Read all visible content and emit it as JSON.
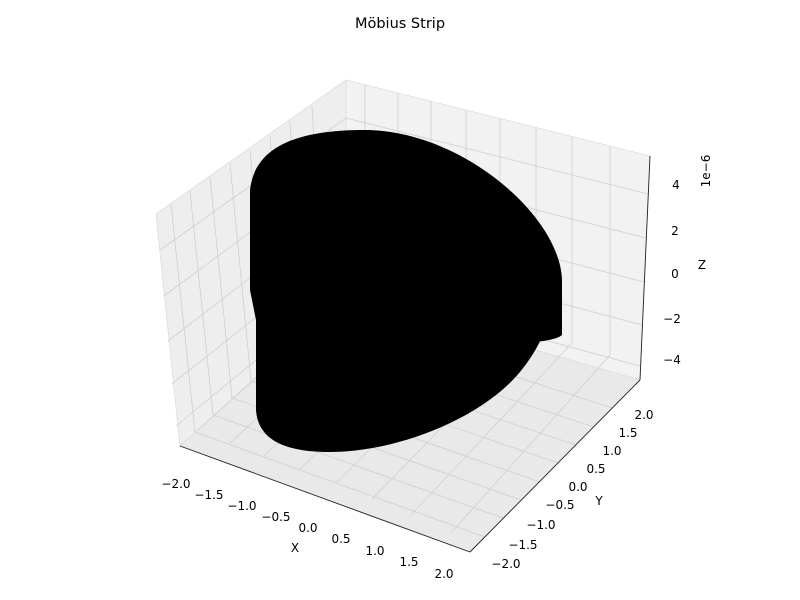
{
  "chart_data": {
    "type": "surface3d",
    "title": "Möbius Strip",
    "xlabel": "X",
    "ylabel": "Y",
    "zlabel": "Z",
    "xlim": [
      -2.25,
      2.25
    ],
    "ylim": [
      -2.25,
      2.25
    ],
    "zlim": [
      -5.5e-06,
      5.5e-06
    ],
    "x_ticks": [
      "−2.0",
      "−1.5",
      "−1.0",
      "−0.5",
      "0.0",
      "0.5",
      "1.0",
      "1.5",
      "2.0"
    ],
    "y_ticks": [
      "−2.0",
      "−1.5",
      "−1.0",
      "−0.5",
      "0.0",
      "0.5",
      "1.0",
      "1.5",
      "2.0"
    ],
    "z_ticks": [
      "−4",
      "−2",
      "0",
      "2",
      "4"
    ],
    "z_offset": "1e−6",
    "surface_color": "#000000",
    "pane_color": "#f2f2f2",
    "grid": true
  }
}
